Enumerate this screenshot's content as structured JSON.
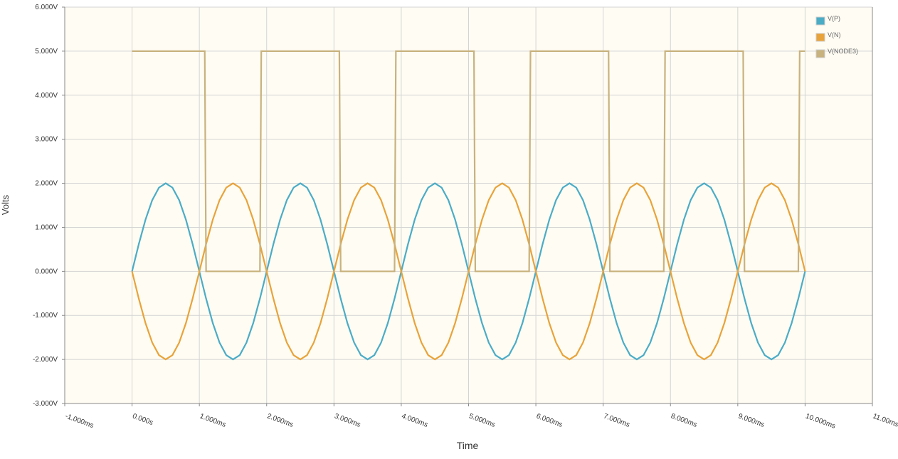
{
  "chart_data": {
    "type": "line",
    "xlabel": "Time",
    "ylabel": "Volts",
    "x": [
      0,
      0.1,
      0.2,
      0.3,
      0.4,
      0.5,
      0.6,
      0.7,
      0.8,
      0.9,
      1,
      1.1,
      1.2,
      1.3,
      1.4,
      1.5,
      1.6,
      1.7,
      1.8,
      1.9,
      2,
      2.1,
      2.2,
      2.3,
      2.4,
      2.5,
      2.6,
      2.7,
      2.8,
      2.9,
      3,
      3.1,
      3.2,
      3.3,
      3.4,
      3.5,
      3.6,
      3.7,
      3.8,
      3.9,
      4,
      4.1,
      4.2,
      4.3,
      4.4,
      4.5,
      4.6,
      4.7,
      4.8,
      4.9,
      5,
      5.1,
      5.2,
      5.3,
      5.4,
      5.5,
      5.6,
      5.7,
      5.8,
      5.9,
      6,
      6.1,
      6.2,
      6.3,
      6.4,
      6.5,
      6.6,
      6.7,
      6.8,
      6.9,
      7,
      7.1,
      7.2,
      7.3,
      7.4,
      7.5,
      7.6,
      7.7,
      7.8,
      7.9,
      8,
      8.1,
      8.2,
      8.3,
      8.4,
      8.5,
      8.6,
      8.7,
      8.8,
      8.9,
      9,
      9.1,
      9.2,
      9.3,
      9.4,
      9.5,
      9.6,
      9.7,
      9.8,
      9.9,
      10
    ],
    "series": [
      {
        "name": "V(P)",
        "color": "#4bacc6",
        "values": [
          0,
          0.618,
          1.176,
          1.618,
          1.902,
          2,
          1.902,
          1.618,
          1.176,
          0.618,
          0,
          -0.618,
          -1.176,
          -1.618,
          -1.902,
          -2,
          -1.902,
          -1.618,
          -1.176,
          -0.618,
          0,
          0.618,
          1.176,
          1.618,
          1.902,
          2,
          1.902,
          1.618,
          1.176,
          0.618,
          0,
          -0.618,
          -1.176,
          -1.618,
          -1.902,
          -2,
          -1.902,
          -1.618,
          -1.176,
          -0.618,
          0,
          0.618,
          1.176,
          1.618,
          1.902,
          2,
          1.902,
          1.618,
          1.176,
          0.618,
          0,
          -0.618,
          -1.176,
          -1.618,
          -1.902,
          -2,
          -1.902,
          -1.618,
          -1.176,
          -0.618,
          0,
          0.618,
          1.176,
          1.618,
          1.902,
          2,
          1.902,
          1.618,
          1.176,
          0.618,
          0,
          -0.618,
          -1.176,
          -1.618,
          -1.902,
          -2,
          -1.902,
          -1.618,
          -1.176,
          -0.618,
          0,
          0.618,
          1.176,
          1.618,
          1.902,
          2,
          1.902,
          1.618,
          1.176,
          0.618,
          0,
          -0.618,
          -1.176,
          -1.618,
          -1.902,
          -2,
          -1.902,
          -1.618,
          -1.176,
          -0.618,
          0
        ]
      },
      {
        "name": "V(N)",
        "color": "#e8a33a",
        "values": [
          0,
          -0.618,
          -1.176,
          -1.618,
          -1.902,
          -2,
          -1.902,
          -1.618,
          -1.176,
          -0.618,
          0,
          0.618,
          1.176,
          1.618,
          1.902,
          2,
          1.902,
          1.618,
          1.176,
          0.618,
          0,
          -0.618,
          -1.176,
          -1.618,
          -1.902,
          -2,
          -1.902,
          -1.618,
          -1.176,
          -0.618,
          0,
          0.618,
          1.176,
          1.618,
          1.902,
          2,
          1.902,
          1.618,
          1.176,
          0.618,
          0,
          -0.618,
          -1.176,
          -1.618,
          -1.902,
          -2,
          -1.902,
          -1.618,
          -1.176,
          -0.618,
          0,
          0.618,
          1.176,
          1.618,
          1.902,
          2,
          1.902,
          1.618,
          1.176,
          0.618,
          0,
          -0.618,
          -1.176,
          -1.618,
          -1.902,
          -2,
          -1.902,
          -1.618,
          -1.176,
          -0.618,
          0,
          0.618,
          1.176,
          1.618,
          1.902,
          2,
          1.902,
          1.618,
          1.176,
          0.618,
          0,
          -0.618,
          -1.176,
          -1.618,
          -1.902,
          -2,
          -1.902,
          -1.618,
          -1.176,
          -0.618,
          0,
          0.618,
          1.176,
          1.618,
          1.902,
          2,
          1.902,
          1.618,
          1.176,
          0.618,
          0
        ]
      },
      {
        "name": "V(NODE3)",
        "color": "#c8b27e",
        "x": [
          0,
          1.08,
          1.1,
          1.9,
          1.92,
          3.08,
          3.1,
          3.9,
          3.92,
          5.08,
          5.1,
          5.9,
          5.92,
          7.08,
          7.1,
          7.9,
          7.92,
          9.08,
          9.1,
          9.9,
          9.92,
          10
        ],
        "values": [
          5,
          5,
          0,
          0,
          5,
          5,
          0,
          0,
          5,
          5,
          0,
          0,
          5,
          5,
          0,
          0,
          5,
          5,
          0,
          0,
          5,
          5
        ]
      }
    ],
    "xlim": [
      -1,
      11
    ],
    "xticks": [
      {
        "value": -1,
        "label": "-1.000ms"
      },
      {
        "value": 0,
        "label": "0.000s"
      },
      {
        "value": 1,
        "label": "1.000ms"
      },
      {
        "value": 2,
        "label": "2.000ms"
      },
      {
        "value": 3,
        "label": "3.000ms"
      },
      {
        "value": 4,
        "label": "4.000ms"
      },
      {
        "value": 5,
        "label": "5.000ms"
      },
      {
        "value": 6,
        "label": "6.000ms"
      },
      {
        "value": 7,
        "label": "7.000ms"
      },
      {
        "value": 8,
        "label": "8.000ms"
      },
      {
        "value": 9,
        "label": "9.000ms"
      },
      {
        "value": 10,
        "label": "10.000ms"
      },
      {
        "value": 11,
        "label": "11.00ms"
      }
    ],
    "ylim": [
      -3,
      6
    ],
    "yticks": [
      {
        "value": -3,
        "label": "-3.000V"
      },
      {
        "value": -2,
        "label": "-2.000V"
      },
      {
        "value": -1,
        "label": "-1.000V"
      },
      {
        "value": 0,
        "label": "0.000V"
      },
      {
        "value": 1,
        "label": "1.000V"
      },
      {
        "value": 2,
        "label": "2.000V"
      },
      {
        "value": 3,
        "label": "3.000V"
      },
      {
        "value": 4,
        "label": "4.000V"
      },
      {
        "value": 5,
        "label": "5.000V"
      },
      {
        "value": 6,
        "label": "6.000V"
      }
    ],
    "grid": true,
    "legend": "top-right"
  }
}
